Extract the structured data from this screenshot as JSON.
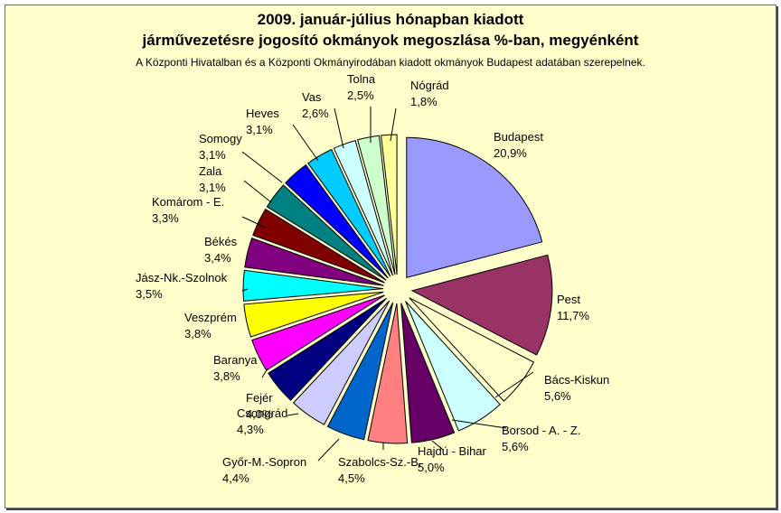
{
  "chart_data": {
    "type": "pie",
    "title": "2009. január-július hónapban kiadott",
    "title_line2": "járművezetésre jogosító okmányok megoszlása %-ban, megyénként",
    "subtitle": "A Központi Hivatalban és a Központi Okmányirodában kiadott okmányok Budapest adatában szerepelnek.",
    "exploded": true,
    "background": "#ffffcc",
    "unit": "%",
    "slices": [
      {
        "name": "Budapest",
        "value": 20.9,
        "label": "20,9%",
        "color": "#9999ff"
      },
      {
        "name": "Pest",
        "value": 11.7,
        "label": "11,7%",
        "color": "#993366"
      },
      {
        "name": "Bács-Kiskun",
        "value": 5.6,
        "label": "5,6%",
        "color": "#ffffcc"
      },
      {
        "name": "Borsod - A. - Z.",
        "value": 5.6,
        "label": "5,6%",
        "color": "#ccffff"
      },
      {
        "name": "Hajdú - Bihar",
        "value": 5.0,
        "label": "5,0%",
        "color": "#660066"
      },
      {
        "name": "Szabolcs-Sz.-B.",
        "value": 4.5,
        "label": "4,5%",
        "color": "#ff8080"
      },
      {
        "name": "Győr-M.-Sopron",
        "value": 4.4,
        "label": "4,4%",
        "color": "#0066cc"
      },
      {
        "name": "Csongrád",
        "value": 4.3,
        "label": "4,3%",
        "color": "#ccccff"
      },
      {
        "name": "Fejér",
        "value": 4.0,
        "label": "4,0%",
        "color": "#000080"
      },
      {
        "name": "Baranya",
        "value": 3.8,
        "label": "3,8%",
        "color": "#ff00ff"
      },
      {
        "name": "Veszprém",
        "value": 3.8,
        "label": "3,8%",
        "color": "#ffff00"
      },
      {
        "name": "Jász-Nk.-Szolnok",
        "value": 3.5,
        "label": "3,5%",
        "color": "#00ffff"
      },
      {
        "name": "Békés",
        "value": 3.4,
        "label": "3,4%",
        "color": "#800080"
      },
      {
        "name": "Komárom - E.",
        "value": 3.3,
        "label": "3,3%",
        "color": "#800000"
      },
      {
        "name": "Zala",
        "value": 3.1,
        "label": "3,1%",
        "color": "#008080"
      },
      {
        "name": "Somogy",
        "value": 3.1,
        "label": "3,1%",
        "color": "#0000ff"
      },
      {
        "name": "Heves",
        "value": 3.1,
        "label": "3,1%",
        "color": "#00ccff"
      },
      {
        "name": "Vas",
        "value": 2.6,
        "label": "2,6%",
        "color": "#ccffff"
      },
      {
        "name": "Tolna",
        "value": 2.5,
        "label": "2,5%",
        "color": "#ccffcc"
      },
      {
        "name": "Nógrád",
        "value": 1.8,
        "label": "1,8%",
        "color": "#ffff99"
      }
    ]
  }
}
